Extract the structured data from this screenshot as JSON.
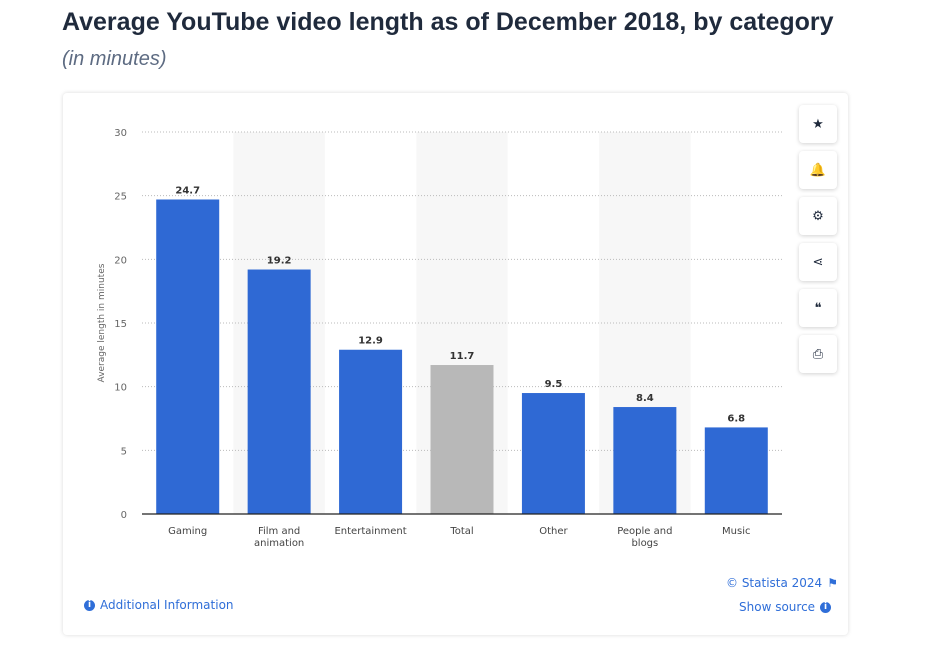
{
  "chart_data": {
    "type": "bar",
    "title": "Average YouTube video length as of December 2018, by category",
    "subtitle": "(in minutes)",
    "ylabel": "Average length in minutes",
    "xlabel": "",
    "ylim": [
      0,
      30
    ],
    "yticks": [
      0,
      5,
      10,
      15,
      20,
      25,
      30
    ],
    "grid": true,
    "categories": [
      "Gaming",
      "Film and animation",
      "Entertainment",
      "Total",
      "Other",
      "People and blogs",
      "Music"
    ],
    "values": [
      24.7,
      19.2,
      12.9,
      11.7,
      9.5,
      8.4,
      6.8
    ],
    "colors": [
      "#2f69d4",
      "#2f69d4",
      "#2f69d4",
      "#b8b8b8",
      "#2f69d4",
      "#2f69d4",
      "#2f69d4"
    ]
  },
  "footer": {
    "copyright": "© Statista 2024",
    "show_source": "Show source",
    "additional_info": "Additional Information"
  },
  "toolbar": [
    {
      "icon": "star-icon",
      "glyph": "★"
    },
    {
      "icon": "bell-icon",
      "glyph": "🔔"
    },
    {
      "icon": "gear-icon",
      "glyph": "⚙"
    },
    {
      "icon": "share-icon",
      "glyph": "⋖"
    },
    {
      "icon": "quote-icon",
      "glyph": "❝"
    },
    {
      "icon": "print-icon",
      "glyph": "⎙"
    }
  ]
}
